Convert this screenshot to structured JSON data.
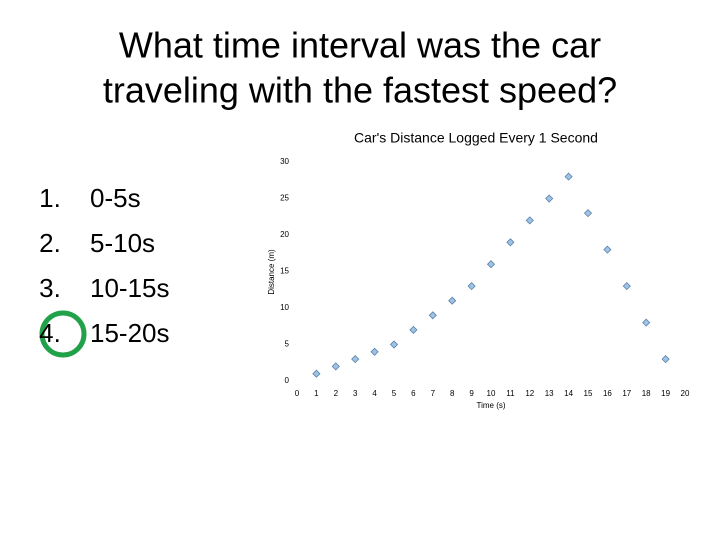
{
  "slide": {
    "title_lines": [
      "What time interval was the car",
      "traveling with the fastest speed?"
    ],
    "items": [
      {
        "number": "1.",
        "text": "0-5s"
      },
      {
        "number": "2.",
        "text": "5-10s"
      },
      {
        "number": "3.",
        "text": "10-15s"
      },
      {
        "number": "4.",
        "text": "15-20s"
      }
    ]
  },
  "chart_data": {
    "type": "scatter",
    "title": "Car's Distance Logged Every 1 Second",
    "x_label": "Time (s)",
    "y_label": "Distance (m)",
    "x": [
      1,
      2,
      3,
      4,
      5,
      6,
      7,
      8,
      9,
      10,
      11,
      12,
      13,
      14,
      15,
      16,
      17,
      18,
      19
    ],
    "values": [
      1,
      2,
      3,
      4,
      5,
      7,
      9,
      11,
      13,
      16,
      19,
      22,
      25,
      28,
      23,
      18,
      13,
      8,
      3
    ],
    "color": "#9dc3e6",
    "xlim": [
      0,
      20
    ],
    "ylim": [
      0,
      30
    ],
    "xticks": [
      0,
      1,
      2,
      3,
      4,
      5,
      6,
      7,
      8,
      9,
      10,
      11,
      12,
      13,
      14,
      15,
      16,
      17,
      18,
      19,
      20
    ],
    "yticks": [
      0,
      5,
      10,
      15,
      20,
      25,
      30
    ]
  }
}
